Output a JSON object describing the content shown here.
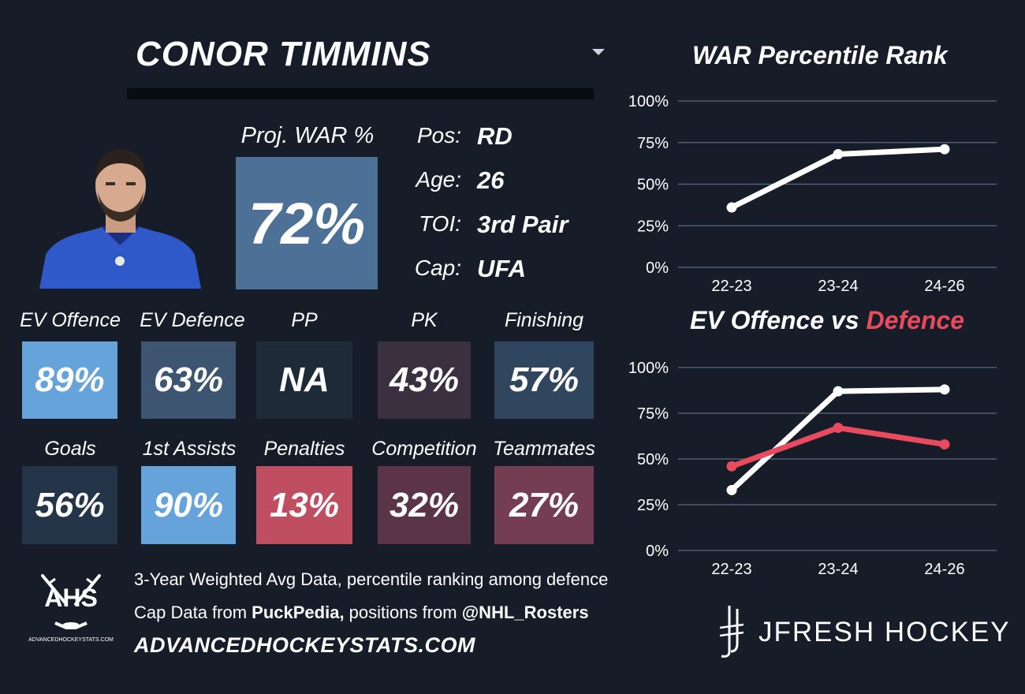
{
  "player": {
    "name": "CONOR TIMMINS",
    "proj_label": "Proj. WAR %",
    "proj_value": "72%",
    "proj_color": "#4d7096",
    "info": [
      {
        "label": "Pos:",
        "value": "RD"
      },
      {
        "label": "Age:",
        "value": "26"
      },
      {
        "label": "TOI:",
        "value": "3rd Pair"
      },
      {
        "label": "Cap:",
        "value": "UFA"
      }
    ]
  },
  "stats_row1": [
    {
      "label": "EV Offence",
      "value": "89%",
      "color": "#67a3db"
    },
    {
      "label": "EV Defence",
      "value": "63%",
      "color": "#3d5570"
    },
    {
      "label": "PP",
      "value": "NA",
      "color": "#1f2a38"
    },
    {
      "label": "PK",
      "value": "43%",
      "color": "#3b3040"
    },
    {
      "label": "Finishing",
      "value": "57%",
      "color": "#30455e"
    }
  ],
  "stats_row2": [
    {
      "label": "Goals",
      "value": "56%",
      "color": "#243449"
    },
    {
      "label": "1st Assists",
      "value": "90%",
      "color": "#67a3db"
    },
    {
      "label": "Penalties",
      "value": "13%",
      "color": "#c04e61"
    },
    {
      "label": "Competition",
      "value": "32%",
      "color": "#5b3547"
    },
    {
      "label": "Teammates",
      "value": "27%",
      "color": "#743d52"
    }
  ],
  "chart_data": [
    {
      "type": "line",
      "title": "WAR Percentile Rank",
      "categories": [
        "22-23",
        "23-24",
        "24-26"
      ],
      "series": [
        {
          "values": [
            36,
            68,
            71
          ],
          "color": "#ffffff"
        }
      ],
      "yticks": [
        "0%",
        "25%",
        "50%",
        "75%",
        "100%"
      ],
      "ylim": [
        0,
        100
      ],
      "grid": true
    },
    {
      "type": "line",
      "title_part1": "EV Offence vs ",
      "title_part2": "Defence",
      "categories": [
        "22-23",
        "23-24",
        "24-26"
      ],
      "series": [
        {
          "values": [
            33,
            87,
            88
          ],
          "color": "#ffffff"
        },
        {
          "values": [
            46,
            67,
            58
          ],
          "color": "#ea4a5e"
        }
      ],
      "yticks": [
        "0%",
        "25%",
        "50%",
        "75%",
        "100%"
      ],
      "ylim": [
        0,
        100
      ],
      "grid": true
    }
  ],
  "footer": {
    "line1": "3-Year Weighted Avg Data, percentile ranking among defence",
    "line2_pre": "Cap Data from ",
    "line2_b1": "PuckPedia,",
    "line2_mid": " positions from ",
    "line2_b2": "@NHL_Rosters",
    "site": "ADVANCEDHOCKEYSTATS.COM",
    "ahs_logo_text": "AHS",
    "ahs_logo_subtext": "ADVANCEDHOCKEYSTATS.COM",
    "brand": "JFRESH HOCKEY"
  }
}
